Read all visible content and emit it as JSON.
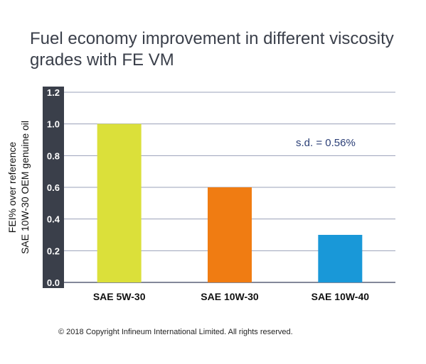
{
  "chart_data": {
    "type": "bar",
    "title": "Fuel economy improvement in different viscosity grades with FE VM",
    "ylabel_lines": [
      "FEI% over reference",
      "SAE 10W-30 OEM genuine oil"
    ],
    "categories": [
      "SAE 5W-30",
      "SAE 10W-30",
      "SAE 10W-40"
    ],
    "values": [
      1.0,
      0.6,
      0.3
    ],
    "colors": [
      "#dbe03a",
      "#f07c12",
      "#1998d8"
    ],
    "ylim": [
      0,
      1.2
    ],
    "yticks": [
      "0.0",
      "0.2",
      "0.4",
      "0.6",
      "0.8",
      "1.0",
      "1.2"
    ],
    "grid": true,
    "annotation": "s.d. = 0.56%",
    "axis_box_color": "#3a3f4a",
    "grid_color": "#9aa0b8"
  },
  "footer": {
    "copyright": "© 2018 Copyright Infineum International Limited. All rights reserved."
  }
}
